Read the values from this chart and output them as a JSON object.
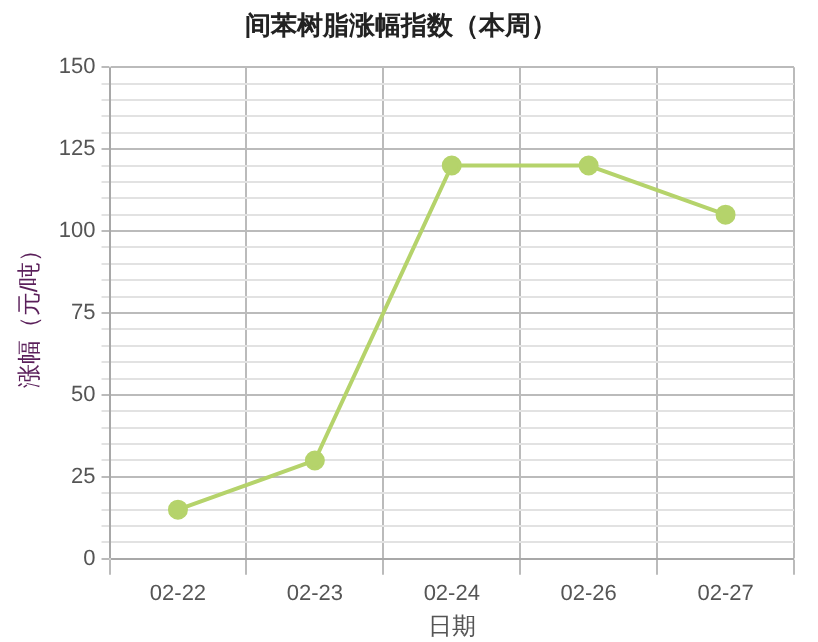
{
  "chart_data": {
    "type": "line",
    "title": "间苯树脂涨幅指数（本周）",
    "xlabel": "日期",
    "ylabel": "涨幅（元/吨）",
    "categories": [
      "02-22",
      "02-23",
      "02-24",
      "02-26",
      "02-27"
    ],
    "series": [
      {
        "color": "#b5d36b",
        "values": [
          15,
          30,
          120,
          120,
          105
        ]
      }
    ],
    "ylim": [
      0,
      150
    ],
    "yticks": [
      0,
      {
        "value": 5,
        "label": null
      },
      {
        "value": 10,
        "label": null
      },
      {
        "value": 15,
        "label": null
      },
      {
        "value": 20,
        "label": null
      },
      25,
      {
        "value": 30,
        "label": null
      },
      {
        "value": 35,
        "label": null
      },
      {
        "value": 40,
        "label": null
      },
      {
        "value": 45,
        "label": null
      },
      50,
      {
        "value": 55,
        "label": null
      },
      {
        "value": 60,
        "label": null
      },
      {
        "value": 65,
        "label": null
      },
      {
        "value": 70,
        "label": null
      },
      75,
      {
        "value": 80,
        "label": null
      },
      {
        "value": 85,
        "label": null
      },
      {
        "value": 90,
        "label": null
      },
      {
        "value": 95,
        "label": null
      },
      100,
      {
        "value": 105,
        "label": null
      },
      {
        "value": 110,
        "label": null
      },
      {
        "value": 115,
        "label": null
      },
      {
        "value": 120,
        "label": null
      },
      125,
      {
        "value": 130,
        "label": null
      },
      {
        "value": 135,
        "label": null
      },
      {
        "value": 140,
        "label": null
      },
      {
        "value": 145,
        "label": null
      },
      150
    ],
    "grid": true,
    "legend": false,
    "marker": "circle",
    "line_style": "solid"
  }
}
